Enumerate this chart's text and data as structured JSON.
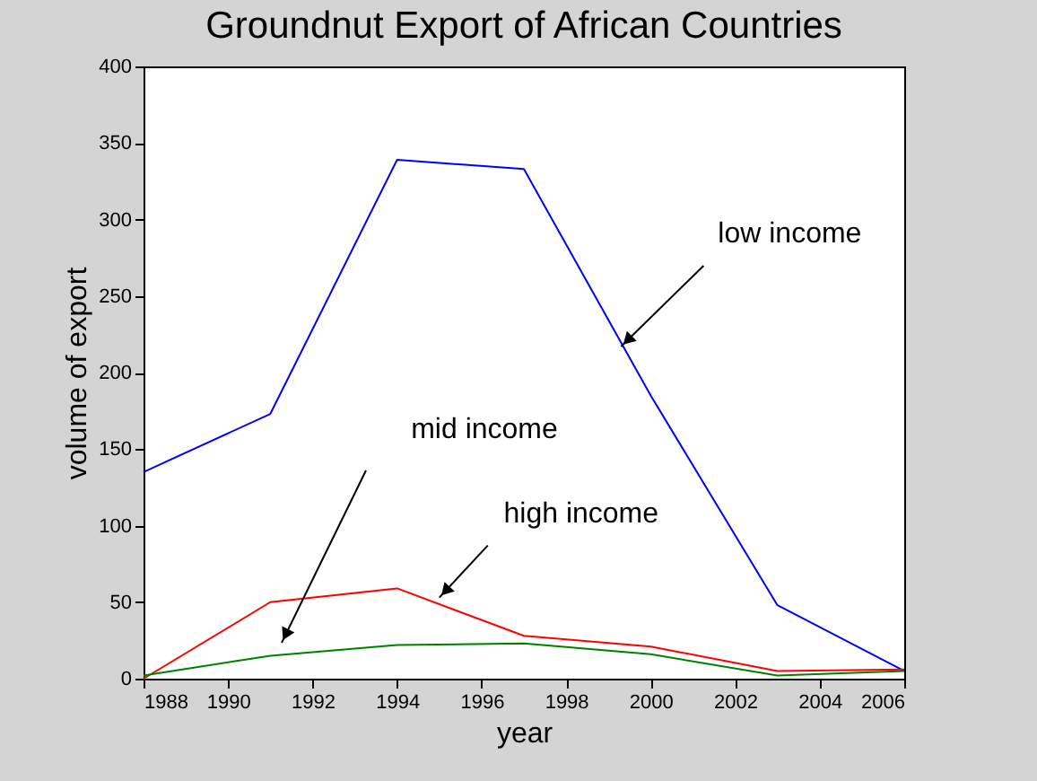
{
  "chart_data": {
    "type": "line",
    "title": "Groundnut Export of African Countries",
    "xlabel": "year",
    "ylabel": "volume of export",
    "x": [
      1988,
      1991,
      1994,
      1997,
      2000,
      2003,
      2006
    ],
    "series": [
      {
        "color": "#0000ff",
        "values": [
          135,
          173,
          339,
          333,
          185,
          48,
          5
        ]
      },
      {
        "color": "#ff0000",
        "values": [
          0,
          50,
          59,
          28,
          21,
          5,
          6
        ]
      },
      {
        "color": "#008000",
        "values": [
          2,
          15,
          22,
          23,
          16,
          2,
          5
        ]
      }
    ],
    "xlim": [
      1988,
      2006
    ],
    "xticks": [
      1988,
      1990,
      1992,
      1994,
      1996,
      1998,
      2000,
      2002,
      2004,
      2006
    ],
    "ylim": [
      0,
      400
    ],
    "yticks": [
      0,
      50,
      100,
      150,
      200,
      250,
      300,
      350,
      400
    ],
    "grid": false,
    "annotations": [
      {
        "text": "low income",
        "x": 1999.3,
        "y": 217
      },
      "mid income",
      {
        "text": "high income",
        "x": 1995.0,
        "y": 53
      }
    ]
  }
}
